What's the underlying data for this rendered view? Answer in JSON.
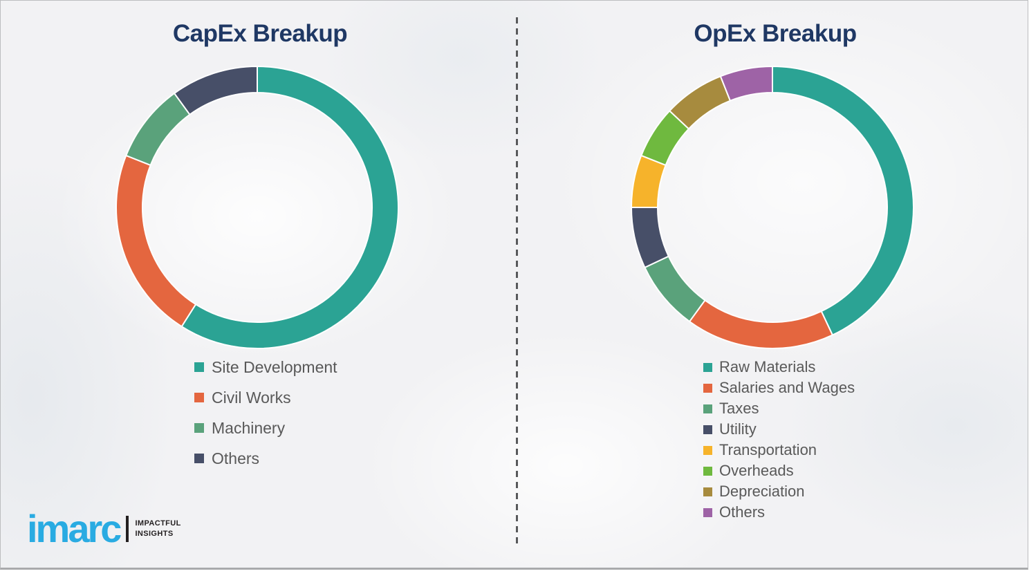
{
  "page": {
    "background_color": "#f2f2f4",
    "divider_color": "#58595b",
    "title_color": "#1f3864",
    "legend_text_color": "#595959"
  },
  "chart_data": [
    {
      "type": "pie",
      "variant": "donut",
      "title": "CapEx Breakup",
      "legend_position": "below-left",
      "values_unit": "percent share estimated from arc angles (no numeric labels shown)",
      "start_angle_deg": 0,
      "direction": "clockwise",
      "segments": [
        {
          "label": "Site Development",
          "value": 59,
          "color": "#2ba394"
        },
        {
          "label": "Civil Works",
          "value": 22,
          "color": "#e4663f"
        },
        {
          "label": "Machinery",
          "value": 9,
          "color": "#5aa27b"
        },
        {
          "label": "Others",
          "value": 10,
          "color": "#474f68"
        }
      ]
    },
    {
      "type": "pie",
      "variant": "donut",
      "title": "OpEx Breakup",
      "legend_position": "below-left",
      "values_unit": "percent share estimated from arc angles (no numeric labels shown)",
      "start_angle_deg": 0,
      "direction": "clockwise",
      "segments": [
        {
          "label": "Raw Materials",
          "value": 43,
          "color": "#2ba394"
        },
        {
          "label": "Salaries and Wages",
          "value": 17,
          "color": "#e4663f"
        },
        {
          "label": "Taxes",
          "value": 8,
          "color": "#5aa27b"
        },
        {
          "label": "Utility",
          "value": 7,
          "color": "#474f68"
        },
        {
          "label": "Transportation",
          "value": 6,
          "color": "#f6b32b"
        },
        {
          "label": "Overheads",
          "value": 6,
          "color": "#6fb93f"
        },
        {
          "label": "Depreciation",
          "value": 7,
          "color": "#a78b3e"
        },
        {
          "label": "Others",
          "value": 6,
          "color": "#9e63a6"
        }
      ]
    }
  ],
  "logo": {
    "brand": "imarc",
    "brand_color": "#29abe2",
    "tagline_line1": "IMPACTFUL",
    "tagline_line2": "INSIGHTS",
    "tagline_color": "#231f20"
  }
}
